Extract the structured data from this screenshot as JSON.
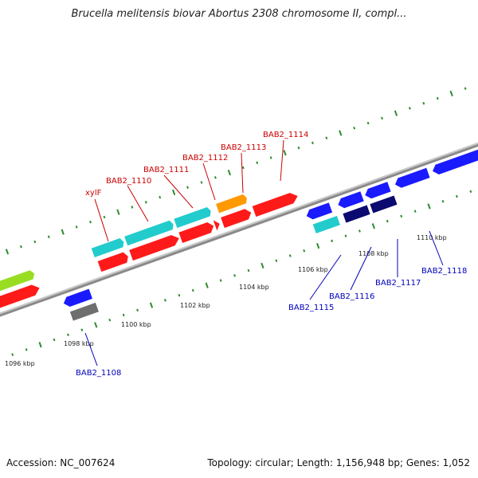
{
  "header": {
    "title": "Brucella melitensis biovar Abortus 2308 chromosome II, compl..."
  },
  "footer": {
    "accession": "Accession: NC_007624",
    "summary": "Topology: circular; Length: 1,156,948 bp; Genes: 1,052"
  },
  "axis": {
    "tick_labels": [
      "1096 kbp",
      "1098 kbp",
      "1100 kbp",
      "1102 kbp",
      "1104 kbp",
      "1106 kbp",
      "1108 kbp",
      "1110 kbp"
    ]
  },
  "genes": {
    "forward": [
      "xylF",
      "BAB2_1110",
      "BAB2_1111",
      "BAB2_1112",
      "BAB2_1113",
      "BAB2_1114"
    ],
    "reverse": [
      "BAB2_1108",
      "BAB2_1115",
      "BAB2_1116",
      "BAB2_1117",
      "BAB2_1118"
    ]
  },
  "colors": {
    "forward_label": "#cc0000",
    "reverse_label": "#0000bb",
    "backbone": "#8a8a8a",
    "tick": "#2e8b2e",
    "cds_fwd": "#ff1a1a",
    "cds_rev": "#1a1aff",
    "teal": "#22cccc",
    "lime": "#99dd22",
    "orange": "#ff9900",
    "navy": "#0a0a70",
    "gray": "#6e6e6e"
  }
}
